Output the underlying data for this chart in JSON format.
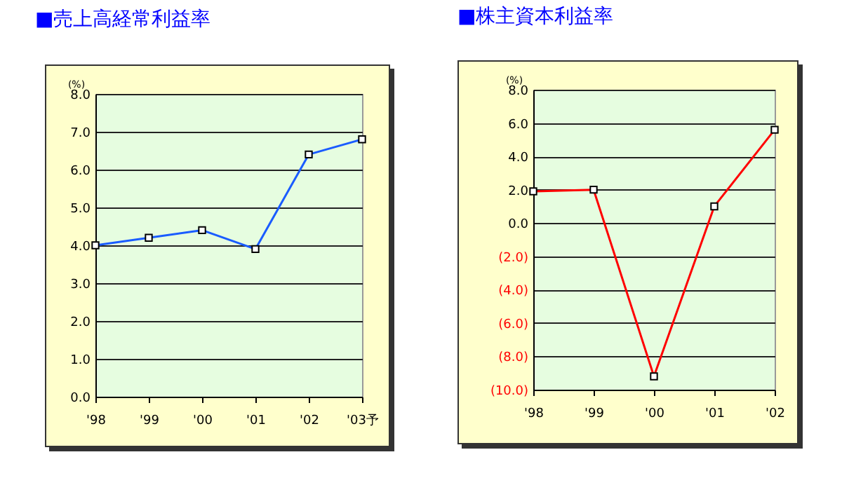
{
  "chart_data": [
    {
      "type": "line",
      "title": "■売上高経常利益率",
      "ylabel": "(%)",
      "categories": [
        "'98",
        "'99",
        "'00",
        "'01",
        "'02",
        "'03予"
      ],
      "series": [
        {
          "color": "#1a5cff",
          "values": [
            4.0,
            4.2,
            4.4,
            3.9,
            6.4,
            6.8
          ]
        }
      ],
      "ylim": [
        0,
        8
      ],
      "yticks": [
        {
          "value": 0,
          "label": "0.0"
        },
        {
          "value": 1,
          "label": "1.0"
        },
        {
          "value": 2,
          "label": "2.0"
        },
        {
          "value": 3,
          "label": "3.0"
        },
        {
          "value": 4,
          "label": "4.0"
        },
        {
          "value": 5,
          "label": "5.0"
        },
        {
          "value": 6,
          "label": "6.0"
        },
        {
          "value": 7,
          "label": "7.0"
        },
        {
          "value": 8,
          "label": "8.0"
        }
      ],
      "grid": "y",
      "marker": "square",
      "line_style": "solid"
    },
    {
      "type": "line",
      "title": "■株主資本利益率",
      "ylabel": "(%)",
      "categories": [
        "'98",
        "'99",
        "'00",
        "'01",
        "'02"
      ],
      "series": [
        {
          "color": "#ff0000",
          "values": [
            1.9,
            2.0,
            -9.2,
            1.0,
            5.6
          ]
        }
      ],
      "ylim": [
        -10,
        8
      ],
      "yticks": [
        {
          "value": -10,
          "label": "(10.0)"
        },
        {
          "value": -8,
          "label": "(8.0)"
        },
        {
          "value": -6,
          "label": "(6.0)"
        },
        {
          "value": -4,
          "label": "(4.0)"
        },
        {
          "value": -2,
          "label": "(2.0)"
        },
        {
          "value": 0,
          "label": "0.0"
        },
        {
          "value": 2,
          "label": "2.0"
        },
        {
          "value": 4,
          "label": "4.0"
        },
        {
          "value": 6,
          "label": "6.0"
        },
        {
          "value": 8,
          "label": "8.0"
        }
      ],
      "grid": "y",
      "marker": "square",
      "line_style": "solid"
    }
  ]
}
